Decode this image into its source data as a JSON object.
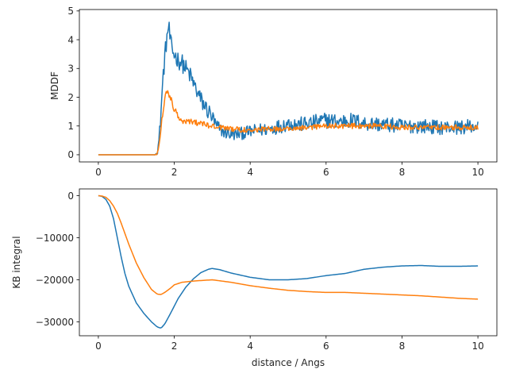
{
  "chart_data": [
    {
      "type": "line",
      "ylabel": "MDDF",
      "xlabel": "",
      "xlim": [
        -0.5,
        10.5
      ],
      "ylim": [
        -0.25,
        5.05
      ],
      "xticks": [
        0,
        2,
        4,
        6,
        8,
        10
      ],
      "xtick_labels": [
        "0",
        "2",
        "4",
        "6",
        "8",
        "10"
      ],
      "yticks": [
        0,
        1,
        2,
        3,
        4,
        5
      ],
      "ytick_labels": [
        "0",
        "1",
        "2",
        "3",
        "4",
        "5"
      ],
      "grid": false,
      "series": [
        {
          "color": "#1f77b4",
          "noise": 0.32,
          "x": [
            0,
            1.5,
            1.55,
            1.6,
            1.65,
            1.7,
            1.75,
            1.8,
            1.85,
            1.9,
            1.95,
            2.0,
            2.1,
            2.2,
            2.3,
            2.4,
            2.5,
            2.6,
            2.7,
            2.8,
            2.9,
            3.0,
            3.1,
            3.2,
            3.3,
            3.4,
            3.5,
            3.6,
            3.8,
            4.0,
            4.2,
            4.5,
            4.8,
            5.0,
            5.3,
            5.6,
            6.0,
            6.3,
            6.6,
            7.0,
            7.5,
            8.0,
            8.5,
            9.0,
            9.5,
            10.0
          ],
          "y": [
            0,
            0,
            0.1,
            0.5,
            1.5,
            2.6,
            3.4,
            4.0,
            4.5,
            3.9,
            3.6,
            3.5,
            3.3,
            3.2,
            3.0,
            2.8,
            2.5,
            2.2,
            1.9,
            1.7,
            1.5,
            1.3,
            1.0,
            0.9,
            0.8,
            0.75,
            0.7,
            0.7,
            0.75,
            0.8,
            0.85,
            0.9,
            1.0,
            1.1,
            1.05,
            1.1,
            1.2,
            1.15,
            1.2,
            1.1,
            1.05,
            1.0,
            1.0,
            0.95,
            0.95,
            1.0
          ]
        },
        {
          "color": "#ff7f0e",
          "noise": 0.12,
          "x": [
            0,
            1.5,
            1.55,
            1.6,
            1.65,
            1.7,
            1.75,
            1.8,
            1.85,
            1.9,
            1.95,
            2.0,
            2.1,
            2.2,
            2.4,
            2.6,
            2.8,
            3.0,
            3.2,
            3.5,
            4.0,
            4.5,
            5.0,
            5.5,
            6.0,
            6.5,
            7.0,
            7.5,
            8.0,
            8.5,
            9.0,
            9.5,
            10.0
          ],
          "y": [
            0,
            0,
            0.05,
            0.3,
            0.9,
            1.5,
            1.95,
            2.2,
            2.15,
            2.0,
            1.8,
            1.6,
            1.35,
            1.2,
            1.15,
            1.1,
            1.05,
            1.0,
            0.95,
            0.9,
            0.85,
            0.9,
            0.9,
            0.95,
            1.0,
            1.0,
            1.0,
            1.0,
            0.95,
            0.95,
            0.95,
            0.95,
            0.95
          ]
        }
      ]
    },
    {
      "type": "line",
      "ylabel": "KB integral",
      "xlabel": "distance / Angs",
      "xlim": [
        -0.5,
        10.5
      ],
      "ylim": [
        -33300,
        1600
      ],
      "xticks": [
        0,
        2,
        4,
        6,
        8,
        10
      ],
      "xtick_labels": [
        "0",
        "2",
        "4",
        "6",
        "8",
        "10"
      ],
      "yticks": [
        0,
        -10000,
        -20000,
        -30000
      ],
      "ytick_labels": [
        "0",
        "−10000",
        "−20000",
        "−30000"
      ],
      "grid": false,
      "series": [
        {
          "color": "#1f77b4",
          "noise": 0,
          "x": [
            0,
            0.1,
            0.2,
            0.3,
            0.4,
            0.5,
            0.6,
            0.7,
            0.8,
            1.0,
            1.2,
            1.4,
            1.55,
            1.65,
            1.75,
            1.9,
            2.1,
            2.3,
            2.5,
            2.7,
            2.9,
            3.0,
            3.2,
            3.5,
            4.0,
            4.5,
            5.0,
            5.5,
            6.0,
            6.5,
            7.0,
            7.5,
            8.0,
            8.5,
            9.0,
            9.5,
            10.0
          ],
          "y": [
            0,
            -200,
            -900,
            -2500,
            -5500,
            -10000,
            -14500,
            -18500,
            -21500,
            -25500,
            -28000,
            -30000,
            -31200,
            -31500,
            -30500,
            -28000,
            -24500,
            -21800,
            -19800,
            -18300,
            -17500,
            -17300,
            -17600,
            -18400,
            -19400,
            -20000,
            -20000,
            -19700,
            -19000,
            -18500,
            -17500,
            -17000,
            -16700,
            -16600,
            -16800,
            -16800,
            -16700
          ]
        },
        {
          "color": "#ff7f0e",
          "noise": 0,
          "x": [
            0,
            0.1,
            0.2,
            0.3,
            0.4,
            0.5,
            0.6,
            0.7,
            0.8,
            1.0,
            1.2,
            1.4,
            1.55,
            1.65,
            1.75,
            1.9,
            2.0,
            2.2,
            2.5,
            3.0,
            3.5,
            4.0,
            4.5,
            5.0,
            5.5,
            6.0,
            6.5,
            7.0,
            7.5,
            8.0,
            8.5,
            9.0,
            9.5,
            10.0
          ],
          "y": [
            0,
            -100,
            -400,
            -1200,
            -2500,
            -4200,
            -6500,
            -9000,
            -11500,
            -16000,
            -19500,
            -22300,
            -23400,
            -23500,
            -23000,
            -22000,
            -21200,
            -20600,
            -20300,
            -20000,
            -20600,
            -21400,
            -22000,
            -22500,
            -22800,
            -23000,
            -23000,
            -23200,
            -23400,
            -23600,
            -23800,
            -24100,
            -24400,
            -24600
          ]
        }
      ]
    }
  ]
}
